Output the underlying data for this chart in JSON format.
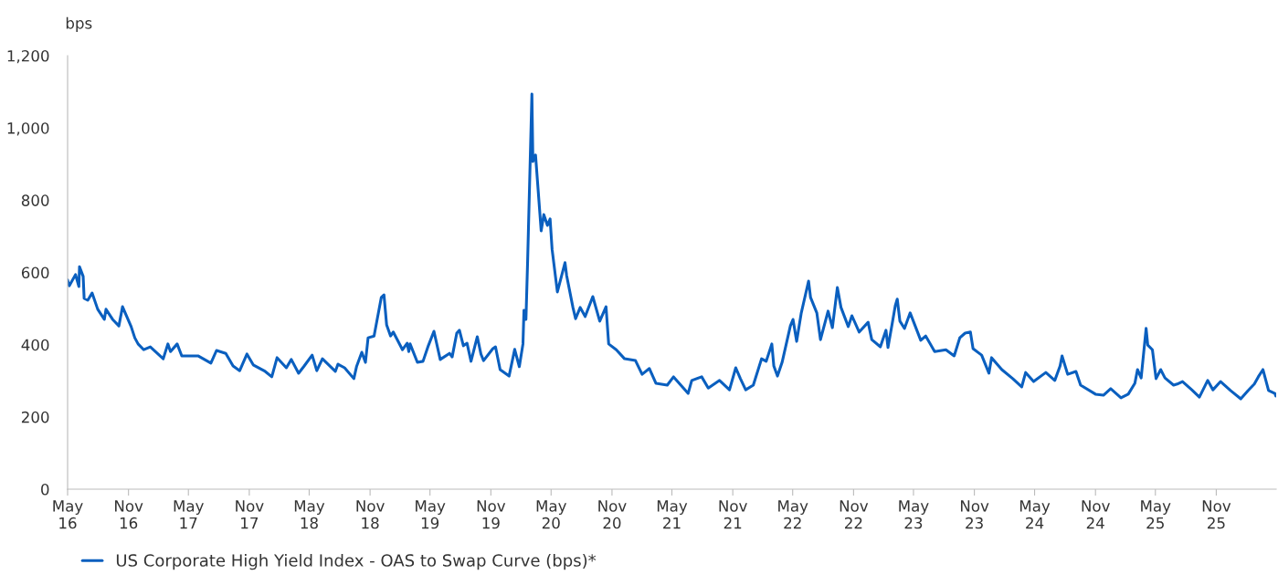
{
  "chart_data": {
    "type": "line",
    "ylabel": "bps",
    "x": [
      "2016-05-01",
      "2016-05-06",
      "2016-05-25",
      "2016-06-04",
      "2016-06-06",
      "2016-06-17",
      "2016-06-20",
      "2016-07-01",
      "2016-07-14",
      "2016-07-31",
      "2016-08-20",
      "2016-08-25",
      "2016-09-14",
      "2016-10-03",
      "2016-10-14",
      "2016-11-09",
      "2016-11-20",
      "2016-11-30",
      "2016-12-17",
      "2017-01-06",
      "2017-02-14",
      "2017-02-28",
      "2017-03-08",
      "2017-03-28",
      "2017-04-11",
      "2017-05-30",
      "2017-07-08",
      "2017-07-25",
      "2017-08-22",
      "2017-09-13",
      "2017-10-03",
      "2017-10-25",
      "2017-11-13",
      "2017-12-19",
      "2018-01-08",
      "2018-01-24",
      "2018-02-21",
      "2018-03-08",
      "2018-03-30",
      "2018-04-16",
      "2018-05-10",
      "2018-05-24",
      "2018-06-10",
      "2018-07-19",
      "2018-07-27",
      "2018-08-16",
      "2018-09-13",
      "2018-09-21",
      "2018-10-07",
      "2018-10-18",
      "2018-10-26",
      "2018-11-13",
      "2018-12-05",
      "2018-12-13",
      "2018-12-21",
      "2019-01-02",
      "2019-01-10",
      "2019-02-07",
      "2019-02-21",
      "2019-02-26",
      "2019-03-02",
      "2019-03-24",
      "2019-04-10",
      "2019-04-26",
      "2019-05-13",
      "2019-06-01",
      "2019-06-29",
      "2019-07-07",
      "2019-07-21",
      "2019-07-29",
      "2019-08-10",
      "2019-08-21",
      "2019-09-02",
      "2019-09-21",
      "2019-10-02",
      "2019-10-10",
      "2019-11-07",
      "2019-11-15",
      "2019-11-29",
      "2019-12-26",
      "2020-01-12",
      "2020-01-26",
      "2020-02-06",
      "2020-02-09",
      "2020-02-15",
      "2020-02-20",
      "2020-03-04",
      "2020-03-07",
      "2020-03-15",
      "2020-04-01",
      "2020-04-09",
      "2020-04-20",
      "2020-04-28",
      "2020-05-04",
      "2020-05-20",
      "2020-06-12",
      "2020-06-17",
      "2020-07-06",
      "2020-07-14",
      "2020-07-28",
      "2020-08-12",
      "2020-09-04",
      "2020-09-25",
      "2020-10-14",
      "2020-10-22",
      "2020-11-14",
      "2020-12-09",
      "2021-01-11",
      "2021-01-31",
      "2021-02-22",
      "2021-03-14",
      "2021-04-17",
      "2021-05-06",
      "2021-06-19",
      "2021-06-30",
      "2021-07-30",
      "2021-08-19",
      "2021-09-22",
      "2021-10-22",
      "2021-11-10",
      "2021-11-24",
      "2021-12-10",
      "2022-01-02",
      "2022-01-27",
      "2022-02-10",
      "2022-02-27",
      "2022-03-05",
      "2022-03-16",
      "2022-03-30",
      "2022-04-24",
      "2022-05-02",
      "2022-05-13",
      "2022-05-27",
      "2022-06-18",
      "2022-06-24",
      "2022-07-13",
      "2022-07-24",
      "2022-08-16",
      "2022-08-29",
      "2022-09-13",
      "2022-09-24",
      "2022-10-16",
      "2022-10-27",
      "2022-11-18",
      "2022-12-15",
      "2022-12-26",
      "2023-01-21",
      "2023-02-07",
      "2023-02-13",
      "2023-02-26",
      "2023-03-07",
      "2023-03-13",
      "2023-03-21",
      "2023-04-04",
      "2023-04-21",
      "2023-05-23",
      "2023-06-07",
      "2023-07-04",
      "2023-08-07",
      "2023-09-01",
      "2023-09-18",
      "2023-10-04",
      "2023-10-20",
      "2023-10-28",
      "2023-11-23",
      "2023-12-15",
      "2023-12-23",
      "2024-01-23",
      "2024-02-25",
      "2024-03-23",
      "2024-04-04",
      "2024-04-28",
      "2024-06-04",
      "2024-07-01",
      "2024-07-17",
      "2024-07-23",
      "2024-08-09",
      "2024-09-03",
      "2024-09-17",
      "2024-11-01",
      "2024-11-25",
      "2024-12-17",
      "2025-01-17",
      "2025-02-08",
      "2025-02-28",
      "2025-03-08",
      "2025-03-19",
      "2025-04-03",
      "2025-04-08",
      "2025-04-22",
      "2025-05-03",
      "2025-05-17",
      "2025-05-30",
      "2025-06-25",
      "2025-07-06",
      "2025-07-22",
      "2025-08-19",
      "2025-09-11",
      "2025-10-06",
      "2025-10-22",
      "2025-11-14",
      "2025-12-14",
      "2026-01-14",
      "2026-02-05",
      "2026-02-24",
      "2026-03-08",
      "2026-03-22",
      "2026-04-08",
      "2026-04-27",
      "2026-04-30"
    ],
    "series": [
      {
        "name": "US Corporate High Yield Index - OAS to Swap Curve (bps)*",
        "color": "#0a5fbf",
        "values": [
          579,
          563,
          594,
          561,
          616,
          589,
          528,
          523,
          543,
          498,
          470,
          498,
          470,
          452,
          505,
          450,
          419,
          402,
          386,
          394,
          361,
          402,
          381,
          402,
          369,
          369,
          349,
          384,
          376,
          341,
          328,
          374,
          344,
          326,
          311,
          364,
          336,
          359,
          321,
          341,
          371,
          328,
          361,
          326,
          346,
          336,
          306,
          339,
          379,
          351,
          419,
          424,
          531,
          538,
          455,
          424,
          435,
          386,
          404,
          381,
          402,
          351,
          354,
          397,
          437,
          359,
          376,
          366,
          432,
          440,
          397,
          404,
          354,
          422,
          374,
          356,
          389,
          394,
          331,
          313,
          387,
          339,
          402,
          495,
          470,
          629,
          1094,
          907,
          925,
          715,
          760,
          730,
          748,
          664,
          546,
          627,
          591,
          503,
          472,
          503,
          478,
          533,
          465,
          505,
          402,
          386,
          361,
          356,
          318,
          334,
          293,
          288,
          311,
          265,
          301,
          311,
          280,
          301,
          275,
          336,
          306,
          275,
          288,
          361,
          354,
          402,
          341,
          313,
          351,
          452,
          470,
          409,
          488,
          576,
          531,
          488,
          414,
          493,
          447,
          558,
          503,
          450,
          480,
          435,
          462,
          414,
          394,
          440,
          392,
          460,
          508,
          526,
          465,
          445,
          488,
          412,
          424,
          381,
          386,
          369,
          419,
          432,
          435,
          389,
          371,
          321,
          364,
          331,
          306,
          283,
          323,
          298,
          323,
          301,
          341,
          369,
          318,
          326,
          288,
          263,
          260,
          278,
          253,
          263,
          293,
          331,
          308,
          445,
          399,
          386,
          306,
          331,
          308,
          288,
          291,
          298,
          275,
          255,
          301,
          275,
          298,
          273,
          250,
          273,
          291,
          311,
          331,
          273,
          265,
          258
        ]
      }
    ],
    "xlim": [
      "2016-05-01",
      "2026-05-01"
    ],
    "xticks": [
      {
        "value": "2016-05-01",
        "label": "May\n16"
      },
      {
        "value": "2016-11-01",
        "label": "Nov\n16"
      },
      {
        "value": "2017-05-01",
        "label": "May\n17"
      },
      {
        "value": "2017-11-01",
        "label": "Nov\n17"
      },
      {
        "value": "2018-05-01",
        "label": "May\n18"
      },
      {
        "value": "2018-11-01",
        "label": "Nov\n18"
      },
      {
        "value": "2019-05-01",
        "label": "May\n19"
      },
      {
        "value": "2019-11-01",
        "label": "Nov\n19"
      },
      {
        "value": "2020-05-01",
        "label": "May\n20"
      },
      {
        "value": "2020-11-01",
        "label": "Nov\n20"
      },
      {
        "value": "2021-05-01",
        "label": "May\n21"
      },
      {
        "value": "2021-11-01",
        "label": "Nov\n21"
      },
      {
        "value": "2022-05-01",
        "label": "May\n22"
      },
      {
        "value": "2022-11-01",
        "label": "Nov\n22"
      },
      {
        "value": "2023-05-01",
        "label": "May\n23"
      },
      {
        "value": "2023-11-01",
        "label": "Nov\n23"
      },
      {
        "value": "2024-05-01",
        "label": "May\n24"
      },
      {
        "value": "2024-11-01",
        "label": "Nov\n24"
      },
      {
        "value": "2025-05-01",
        "label": "May\n25"
      },
      {
        "value": "2025-11-01",
        "label": "Nov\n25"
      }
    ],
    "ylim": [
      0,
      1200
    ],
    "yticks": [
      0,
      {
        "value": 200,
        "label": "200"
      },
      {
        "value": 400,
        "label": "400"
      },
      {
        "value": 600,
        "label": "600"
      },
      {
        "value": 800,
        "label": "800"
      },
      {
        "value": 1000,
        "label": "1,000"
      },
      {
        "value": 1200,
        "label": "1,200"
      }
    ],
    "grid": false,
    "legend": "bottom",
    "marker": "none",
    "line_style": "solid"
  }
}
